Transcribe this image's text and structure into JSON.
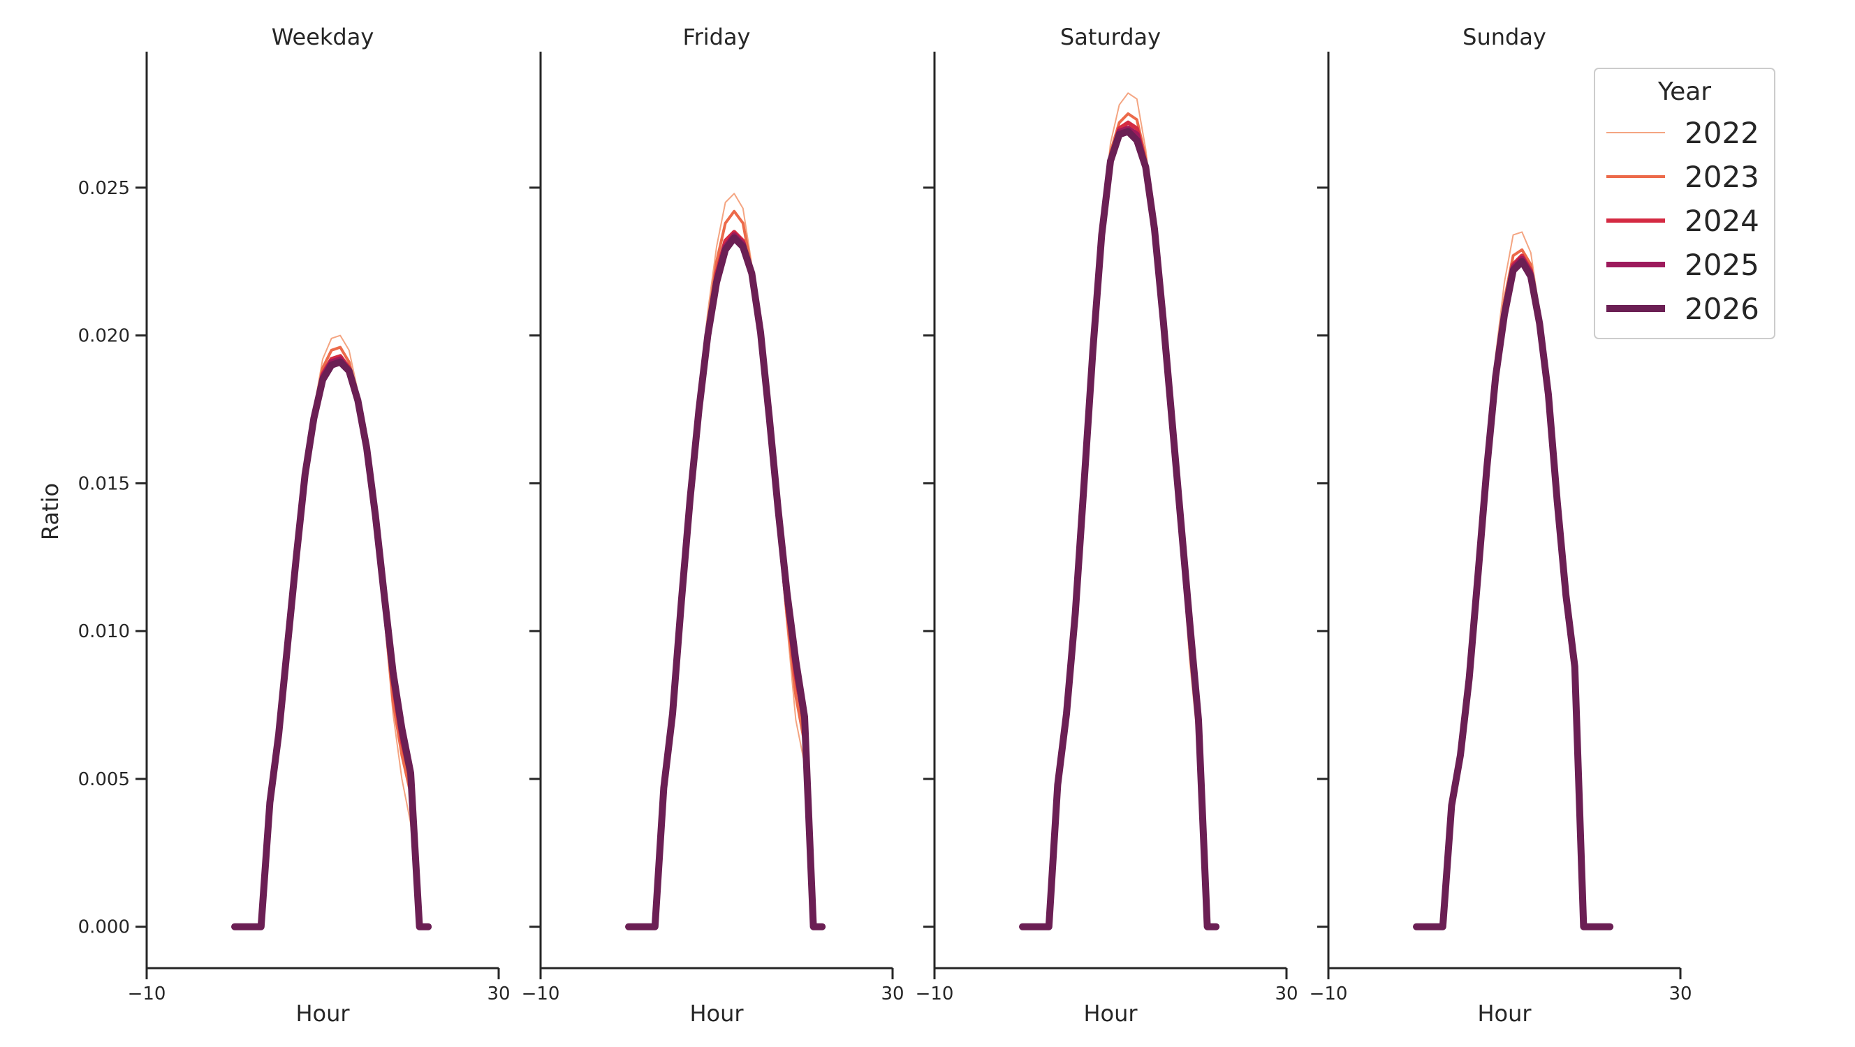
{
  "chart_data": {
    "type": "line",
    "ylabel": "Ratio",
    "xlabel": "Hour",
    "xlim": [
      -10,
      30
    ],
    "ylim": [
      -0.0014,
      0.0296
    ],
    "x_ticks": [
      -10,
      30
    ],
    "x_tick_labels": [
      "−10",
      "30"
    ],
    "y_ticks": [
      0.0,
      0.005,
      0.01,
      0.015,
      0.02,
      0.025
    ],
    "y_tick_labels": [
      "0.000",
      "0.005",
      "0.010",
      "0.015",
      "0.020",
      "0.025"
    ],
    "grid": false,
    "legend": {
      "title": "Year",
      "placement": "top-right",
      "entries": [
        {
          "label": "2022",
          "color": "#f4a582",
          "width": 2
        },
        {
          "label": "2023",
          "color": "#ec6a4a",
          "width": 4
        },
        {
          "label": "2024",
          "color": "#d42a42",
          "width": 6
        },
        {
          "label": "2025",
          "color": "#9d1a5c",
          "width": 8
        },
        {
          "label": "2026",
          "color": "#6b1f54",
          "width": 10
        }
      ]
    },
    "panels": [
      {
        "title": "Weekday",
        "x": [
          0,
          1,
          2,
          3,
          4,
          5,
          6,
          7,
          8,
          9,
          10,
          11,
          12,
          13,
          14,
          15,
          16,
          17,
          18,
          19,
          20,
          21,
          22,
          23,
          24
        ],
        "series": [
          {
            "name": "2022",
            "values": [
              0,
              0,
              0,
              0,
              0.0042,
              0.0065,
              0.0095,
              0.0125,
              0.0153,
              0.0175,
              0.0192,
              0.0199,
              0.02,
              0.0195,
              0.0181,
              0.016,
              0.0135,
              0.0105,
              0.0072,
              0.005,
              0.0035,
              0,
              0,
              null,
              null
            ]
          },
          {
            "name": "2023",
            "values": [
              0,
              0,
              0,
              0,
              0.0042,
              0.0065,
              0.0095,
              0.0125,
              0.0153,
              0.0174,
              0.0189,
              0.0195,
              0.0196,
              0.0191,
              0.0179,
              0.016,
              0.0136,
              0.0107,
              0.0076,
              0.0058,
              0.0045,
              0,
              0,
              null,
              null
            ]
          },
          {
            "name": "2024",
            "values": [
              0,
              0,
              0,
              0,
              0.0042,
              0.0065,
              0.0095,
              0.0125,
              0.0153,
              0.0173,
              0.0187,
              0.0192,
              0.0193,
              0.0189,
              0.0178,
              0.0161,
              0.0137,
              0.011,
              0.0082,
              0.0063,
              0.005,
              0,
              0,
              null,
              null
            ]
          },
          {
            "name": "2025",
            "values": [
              0,
              0,
              0,
              0,
              0.0042,
              0.0065,
              0.0095,
              0.0125,
              0.0153,
              0.0172,
              0.0186,
              0.0191,
              0.0192,
              0.0188,
              0.0178,
              0.0162,
              0.0138,
              0.0112,
              0.0085,
              0.0066,
              0.0052,
              0,
              0,
              null,
              null
            ]
          },
          {
            "name": "2026",
            "values": [
              0,
              0,
              0,
              0,
              0.0042,
              0.0065,
              0.0095,
              0.0125,
              0.0153,
              0.0172,
              0.0185,
              0.019,
              0.0191,
              0.0188,
              0.0178,
              0.0162,
              0.0139,
              0.0112,
              0.0086,
              0.0067,
              0.0052,
              0,
              0,
              null,
              null
            ]
          }
        ]
      },
      {
        "title": "Friday",
        "x": [
          0,
          1,
          2,
          3,
          4,
          5,
          6,
          7,
          8,
          9,
          10,
          11,
          12,
          13,
          14,
          15,
          16,
          17,
          18,
          19,
          20,
          21,
          22,
          23,
          24
        ],
        "series": [
          {
            "name": "2022",
            "values": [
              0,
              0,
              0,
              0,
              0.0047,
              0.0072,
              0.011,
              0.015,
              0.018,
              0.0208,
              0.023,
              0.0245,
              0.0248,
              0.0243,
              0.0224,
              0.02,
              0.017,
              0.0135,
              0.0102,
              0.007,
              0.0055,
              0,
              0,
              null,
              null
            ]
          },
          {
            "name": "2023",
            "values": [
              0,
              0,
              0,
              0,
              0.0047,
              0.0072,
              0.011,
              0.0148,
              0.0178,
              0.0204,
              0.0225,
              0.0238,
              0.0242,
              0.0238,
              0.0222,
              0.02,
              0.017,
              0.0137,
              0.0105,
              0.0078,
              0.0062,
              0,
              0,
              null,
              null
            ]
          },
          {
            "name": "2024",
            "values": [
              0,
              0,
              0,
              0,
              0.0047,
              0.0072,
              0.011,
              0.0146,
              0.0176,
              0.0202,
              0.0221,
              0.0232,
              0.0235,
              0.0232,
              0.0221,
              0.0201,
              0.0171,
              0.0139,
              0.0109,
              0.0085,
              0.0068,
              0,
              0,
              null,
              null
            ]
          },
          {
            "name": "2025",
            "values": [
              0,
              0,
              0,
              0,
              0.0047,
              0.0072,
              0.011,
              0.0146,
              0.0176,
              0.0201,
              0.0219,
              0.023,
              0.0234,
              0.0231,
              0.0221,
              0.0201,
              0.0172,
              0.014,
              0.0111,
              0.0088,
              0.007,
              0,
              0,
              null,
              null
            ]
          },
          {
            "name": "2026",
            "values": [
              0,
              0,
              0,
              0,
              0.0047,
              0.0072,
              0.011,
              0.0145,
              0.0175,
              0.02,
              0.0218,
              0.0229,
              0.0233,
              0.023,
              0.0221,
              0.0201,
              0.0172,
              0.0141,
              0.0113,
              0.009,
              0.0071,
              0,
              0,
              null,
              null
            ]
          }
        ]
      },
      {
        "title": "Saturday",
        "x": [
          0,
          1,
          2,
          3,
          4,
          5,
          6,
          7,
          8,
          9,
          10,
          11,
          12,
          13,
          14,
          15,
          16,
          17,
          18,
          19,
          20,
          21,
          22,
          23,
          24
        ],
        "series": [
          {
            "name": "2022",
            "values": [
              0,
              0,
              0,
              0,
              0.0048,
              0.0072,
              0.0106,
              0.015,
              0.0197,
              0.0237,
              0.0265,
              0.0278,
              0.0282,
              0.028,
              0.0263,
              0.0238,
              0.0205,
              0.0168,
              0.013,
              0.009,
              0.006,
              0,
              0,
              null,
              null
            ]
          },
          {
            "name": "2023",
            "values": [
              0,
              0,
              0,
              0,
              0.0048,
              0.0072,
              0.0106,
              0.015,
              0.0195,
              0.0235,
              0.0262,
              0.0272,
              0.0275,
              0.0273,
              0.026,
              0.0237,
              0.0205,
              0.0169,
              0.0132,
              0.0095,
              0.0065,
              0,
              0,
              null,
              null
            ]
          },
          {
            "name": "2024",
            "values": [
              0,
              0,
              0,
              0,
              0.0048,
              0.0072,
              0.0106,
              0.015,
              0.0195,
              0.0235,
              0.026,
              0.027,
              0.0272,
              0.027,
              0.0258,
              0.0237,
              0.0205,
              0.017,
              0.0135,
              0.01,
              0.0068,
              0,
              0,
              null,
              null
            ]
          },
          {
            "name": "2025",
            "values": [
              0,
              0,
              0,
              0,
              0.0048,
              0.0072,
              0.0106,
              0.015,
              0.0195,
              0.0234,
              0.0259,
              0.0269,
              0.027,
              0.0268,
              0.0257,
              0.0236,
              0.0205,
              0.017,
              0.0136,
              0.0102,
              0.0069,
              0,
              0,
              null,
              null
            ]
          },
          {
            "name": "2026",
            "values": [
              0,
              0,
              0,
              0,
              0.0048,
              0.0072,
              0.0106,
              0.015,
              0.0195,
              0.0234,
              0.0259,
              0.0268,
              0.0269,
              0.0266,
              0.0257,
              0.0236,
              0.0205,
              0.0171,
              0.0137,
              0.0103,
              0.007,
              0,
              0,
              null,
              null
            ]
          }
        ]
      },
      {
        "title": "Sunday",
        "x": [
          0,
          1,
          2,
          3,
          4,
          5,
          6,
          7,
          8,
          9,
          10,
          11,
          12,
          13,
          14,
          15,
          16,
          17,
          18,
          19,
          20,
          21,
          22,
          23,
          24
        ],
        "series": [
          {
            "name": "2022",
            "values": [
              0,
              0,
              0,
              0,
              0.0041,
              0.006,
              0.0087,
              0.0122,
              0.016,
              0.0193,
              0.0218,
              0.0234,
              0.0235,
              0.0228,
              0.0208,
              0.018,
              0.014,
              0.0105,
              0.008,
              0,
              0,
              0,
              0,
              null,
              null
            ]
          },
          {
            "name": "2023",
            "values": [
              0,
              0,
              0,
              0,
              0.0041,
              0.0059,
              0.0085,
              0.012,
              0.0157,
              0.0189,
              0.0212,
              0.0227,
              0.0229,
              0.0224,
              0.0206,
              0.018,
              0.0142,
              0.0108,
              0.0084,
              0,
              0,
              0,
              0,
              null,
              null
            ]
          },
          {
            "name": "2024",
            "values": [
              0,
              0,
              0,
              0,
              0.0041,
              0.0058,
              0.0084,
              0.0119,
              0.0156,
              0.0187,
              0.0209,
              0.0224,
              0.0227,
              0.0222,
              0.0205,
              0.018,
              0.0143,
              0.011,
              0.0086,
              0,
              0,
              0,
              0,
              null,
              null
            ]
          },
          {
            "name": "2025",
            "values": [
              0,
              0,
              0,
              0,
              0.0041,
              0.0058,
              0.0084,
              0.0119,
              0.0155,
              0.0186,
              0.0208,
              0.0223,
              0.0226,
              0.0221,
              0.0204,
              0.018,
              0.0144,
              0.0112,
              0.0087,
              0,
              0,
              0,
              0,
              null,
              null
            ]
          },
          {
            "name": "2026",
            "values": [
              0,
              0,
              0,
              0,
              0.0041,
              0.0058,
              0.0084,
              0.0119,
              0.0155,
              0.0186,
              0.0207,
              0.0222,
              0.0225,
              0.022,
              0.0204,
              0.018,
              0.0144,
              0.0112,
              0.0088,
              0,
              0,
              0,
              0,
              null,
              null
            ]
          }
        ]
      }
    ]
  }
}
